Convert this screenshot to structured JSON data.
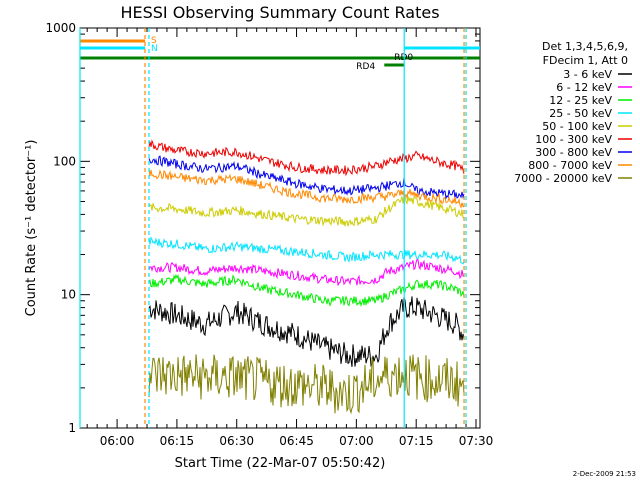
{
  "chart_data": {
    "type": "line",
    "title": "HESSI Observing Summary Count Rates",
    "xlabel": "Start Time (22-Mar-07 05:50:42)",
    "ylabel": "Count Rate (s⁻¹ detector⁻¹)",
    "y_scale": "log",
    "ylim": [
      1,
      1000
    ],
    "xlim": [
      "05:50:42",
      "07:31:00"
    ],
    "x_ticks": [
      "06:00",
      "06:15",
      "06:30",
      "06:45",
      "07:00",
      "07:15",
      "07:30"
    ],
    "y_ticks": [
      "1",
      "10",
      "100",
      "1000"
    ],
    "grid": false,
    "legend_position": "right",
    "legend_header": [
      "Det 1,3,4,5,6,9,",
      "FDecim 1, Att 0"
    ],
    "x": [
      "06:08",
      "06:15",
      "06:22",
      "06:30",
      "06:37",
      "06:45",
      "06:52",
      "06:58",
      "07:05",
      "07:08",
      "07:12",
      "07:15",
      "07:20",
      "07:25",
      "07:27"
    ],
    "series": [
      {
        "name": "3 - 6 keV",
        "color": "#000000",
        "values": [
          8,
          7,
          6,
          7.5,
          6,
          5,
          4,
          3.5,
          3.5,
          6,
          8,
          8,
          7,
          6,
          5
        ]
      },
      {
        "name": "6 - 12 keV",
        "color": "#ff00ff",
        "values": [
          16,
          16,
          15,
          16,
          15,
          14,
          13,
          12.5,
          13,
          15,
          16,
          17,
          16,
          15,
          14
        ]
      },
      {
        "name": "12 - 25 keV",
        "color": "#00ee00",
        "values": [
          12,
          13,
          12,
          13,
          11,
          10,
          9,
          9,
          9,
          10,
          11,
          12,
          12,
          11,
          10
        ]
      },
      {
        "name": "25 - 50 keV",
        "color": "#00e5ff",
        "values": [
          25,
          24,
          22,
          23,
          22,
          21,
          20,
          19,
          20,
          20,
          20,
          20,
          20,
          19,
          18
        ]
      },
      {
        "name": "50 - 100 keV",
        "color": "#cccc00",
        "values": [
          45,
          44,
          41,
          43,
          40,
          37,
          36,
          35,
          37,
          44,
          52,
          50,
          46,
          42,
          40
        ]
      },
      {
        "name": "100 - 300 keV",
        "color": "#ee0000",
        "values": [
          135,
          120,
          115,
          118,
          102,
          90,
          86,
          86,
          92,
          100,
          105,
          110,
          100,
          92,
          85
        ]
      },
      {
        "name": "300 - 800 keV",
        "color": "#0000ee",
        "values": [
          105,
          95,
          88,
          92,
          78,
          68,
          62,
          60,
          63,
          66,
          70,
          60,
          58,
          56,
          55
        ]
      },
      {
        "name": "800 - 7000 keV",
        "color": "#ff8800",
        "values": [
          82,
          76,
          72,
          74,
          65,
          57,
          53,
          52,
          54,
          55,
          58,
          56,
          53,
          50,
          48
        ]
      },
      {
        "name": "7000 - 20000 keV",
        "color": "#808000",
        "values": [
          2.5,
          2.5,
          2.4,
          2.4,
          2.2,
          2.1,
          2.0,
          1.8,
          2.3,
          2.5,
          2.6,
          2.4,
          2.3,
          2.2,
          2.0
        ]
      }
    ],
    "status_bars": [
      {
        "label": "S",
        "color": "#ff8800"
      },
      {
        "label": "N",
        "color": "#00e5ff"
      },
      {
        "label": "",
        "color": "#008000"
      },
      {
        "label": "RD0",
        "color": "#008000"
      },
      {
        "label": "RD4",
        "color": "#008000"
      }
    ],
    "footer_date": "2-Dec-2009 21:53"
  }
}
